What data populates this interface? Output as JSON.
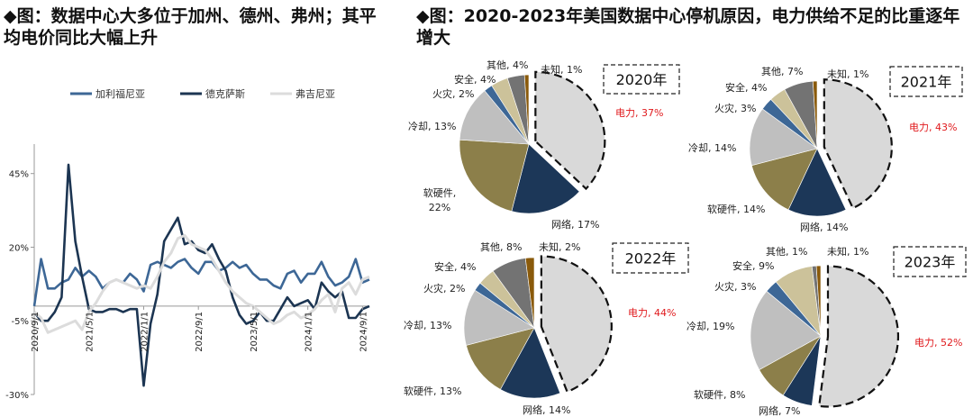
{
  "titles": {
    "left": "◆图：数据中心大多位于加州、德州、弗州；其平均电价同比大幅上升",
    "right": "◆图：2020-2023年美国数据中心停机原因，电力供给不足的比重逐年增大"
  },
  "colors": {
    "california": "#3d6796",
    "texas": "#1c3552",
    "virginia": "#dcdcdc",
    "power_highlight": "#e0191c"
  },
  "chart_data": [
    {
      "type": "line",
      "title": "",
      "xlabel": "",
      "ylabel": "",
      "ylim": [
        -30,
        55
      ],
      "yticks": [
        {
          "value": 45,
          "label": "45%"
        },
        {
          "value": 20,
          "label": "20%"
        },
        {
          "value": -5,
          "label": "-5%"
        },
        {
          "value": -30,
          "label": "-30%"
        }
      ],
      "xticks": [
        {
          "index": 0,
          "label": "2020/9/1"
        },
        {
          "index": 8,
          "label": "2021/5/1"
        },
        {
          "index": 16,
          "label": "2022/1/1"
        },
        {
          "index": 24,
          "label": "2022/9/1"
        },
        {
          "index": 32,
          "label": "2023/5/1"
        },
        {
          "index": 40,
          "label": "2024/1/1"
        },
        {
          "index": 48,
          "label": "2024/9/1"
        }
      ],
      "legend_position": "top",
      "series": [
        {
          "name": "加利福尼亚",
          "color": "#3d6796",
          "values": [
            0,
            16,
            6,
            6,
            8,
            9,
            13,
            10,
            12,
            10,
            6,
            8,
            9,
            8,
            11,
            9,
            5,
            14,
            15,
            14,
            13,
            15,
            16,
            13,
            11,
            15,
            15,
            12,
            13,
            15,
            13,
            14,
            11,
            9,
            9,
            7,
            6,
            11,
            12,
            8,
            11,
            11,
            15,
            10,
            7,
            8,
            10,
            16,
            8,
            9
          ]
        },
        {
          "name": "德克萨斯",
          "color": "#1c3552",
          "values": [
            -2,
            -5,
            -5,
            -2,
            3,
            48,
            22,
            10,
            -1,
            -2,
            -2,
            -1,
            -1,
            -2,
            -1,
            -1,
            -27,
            -6,
            4,
            22,
            26,
            30,
            21,
            22,
            19,
            18,
            21,
            16,
            12,
            3,
            -3,
            -6,
            -5,
            -2,
            -5,
            -5,
            -1,
            3,
            0,
            1,
            2,
            -1,
            8,
            5,
            3,
            5,
            -4,
            -4,
            -1,
            0
          ]
        },
        {
          "name": "弗吉尼亚",
          "color": "#dcdcdc",
          "values": [
            -2,
            -4,
            -9,
            -8,
            -7,
            -6,
            -5,
            -8,
            -2,
            1,
            5,
            8,
            9,
            8,
            7,
            6,
            7,
            6,
            10,
            15,
            18,
            23,
            24,
            21,
            20,
            19,
            16,
            12,
            8,
            5,
            3,
            1,
            0,
            -2,
            -4,
            -6,
            -5,
            -3,
            -2,
            -4,
            -3,
            -1,
            2,
            4,
            -2,
            6,
            8,
            4,
            9,
            10
          ]
        }
      ]
    },
    {
      "type": "pie",
      "title": "2020年",
      "slices": [
        {
          "label": "电力",
          "value": 37,
          "text": "电力, 37%",
          "color": "#d9d9d9",
          "highlight": true
        },
        {
          "label": "网络",
          "value": 17,
          "text": "网络, 17%",
          "color": "#1c3758"
        },
        {
          "label": "软硬件",
          "value": 22,
          "text": "软硬件,\n22%",
          "color": "#8c7f4a"
        },
        {
          "label": "冷却",
          "value": 13,
          "text": "冷却, 13%",
          "color": "#bfbfbf"
        },
        {
          "label": "火灾",
          "value": 2,
          "text": "火灾, 2%",
          "color": "#3d6796"
        },
        {
          "label": "安全",
          "value": 4,
          "text": "安全, 4%",
          "color": "#ccc29a"
        },
        {
          "label": "其他",
          "value": 4,
          "text": "其他, 4%",
          "color": "#737373"
        },
        {
          "label": "未知",
          "value": 1,
          "text": "未知, 1%",
          "color": "#8a5a0b"
        }
      ]
    },
    {
      "type": "pie",
      "title": "2021年",
      "slices": [
        {
          "label": "电力",
          "value": 43,
          "text": "电力, 43%",
          "color": "#d9d9d9",
          "highlight": true
        },
        {
          "label": "网络",
          "value": 14,
          "text": "网络, 14%",
          "color": "#1c3758"
        },
        {
          "label": "软硬件",
          "value": 14,
          "text": "软硬件, 14%",
          "color": "#8c7f4a"
        },
        {
          "label": "冷却",
          "value": 14,
          "text": "冷却, 14%",
          "color": "#bfbfbf"
        },
        {
          "label": "火灾",
          "value": 3,
          "text": "火灾, 3%",
          "color": "#3d6796"
        },
        {
          "label": "安全",
          "value": 4,
          "text": "安全, 4%",
          "color": "#ccc29a"
        },
        {
          "label": "其他",
          "value": 7,
          "text": "其他, 7%",
          "color": "#737373"
        },
        {
          "label": "未知",
          "value": 1,
          "text": "未知, 1%",
          "color": "#8a5a0b"
        }
      ]
    },
    {
      "type": "pie",
      "title": "2022年",
      "slices": [
        {
          "label": "电力",
          "value": 44,
          "text": "电力, 44%",
          "color": "#d9d9d9",
          "highlight": true
        },
        {
          "label": "网络",
          "value": 14,
          "text": "网络, 14%",
          "color": "#1c3758"
        },
        {
          "label": "软硬件",
          "value": 13,
          "text": "软硬件, 13%",
          "color": "#8c7f4a"
        },
        {
          "label": "冷却",
          "value": 13,
          "text": "冷却, 13%",
          "color": "#bfbfbf"
        },
        {
          "label": "火灾",
          "value": 2,
          "text": "火灾, 2%",
          "color": "#3d6796"
        },
        {
          "label": "安全",
          "value": 4,
          "text": "安全, 4%",
          "color": "#ccc29a"
        },
        {
          "label": "其他",
          "value": 8,
          "text": "其他, 8%",
          "color": "#737373"
        },
        {
          "label": "未知",
          "value": 2,
          "text": "未知, 2%",
          "color": "#8a5a0b"
        }
      ]
    },
    {
      "type": "pie",
      "title": "2023年",
      "slices": [
        {
          "label": "电力",
          "value": 52,
          "text": "电力, 52%",
          "color": "#d9d9d9",
          "highlight": true
        },
        {
          "label": "网络",
          "value": 7,
          "text": "网络, 7%",
          "color": "#1c3758"
        },
        {
          "label": "软硬件",
          "value": 8,
          "text": "软硬件, 8%",
          "color": "#8c7f4a"
        },
        {
          "label": "冷却",
          "value": 19,
          "text": "冷却, 19%",
          "color": "#bfbfbf"
        },
        {
          "label": "火灾",
          "value": 3,
          "text": "火灾, 3%",
          "color": "#3d6796"
        },
        {
          "label": "安全",
          "value": 9,
          "text": "安全, 9%",
          "color": "#ccc29a"
        },
        {
          "label": "其他",
          "value": 1,
          "text": "其他, 1%",
          "color": "#737373"
        },
        {
          "label": "未知",
          "value": 1,
          "text": "未知, 1%",
          "color": "#8a5a0b"
        }
      ]
    }
  ]
}
